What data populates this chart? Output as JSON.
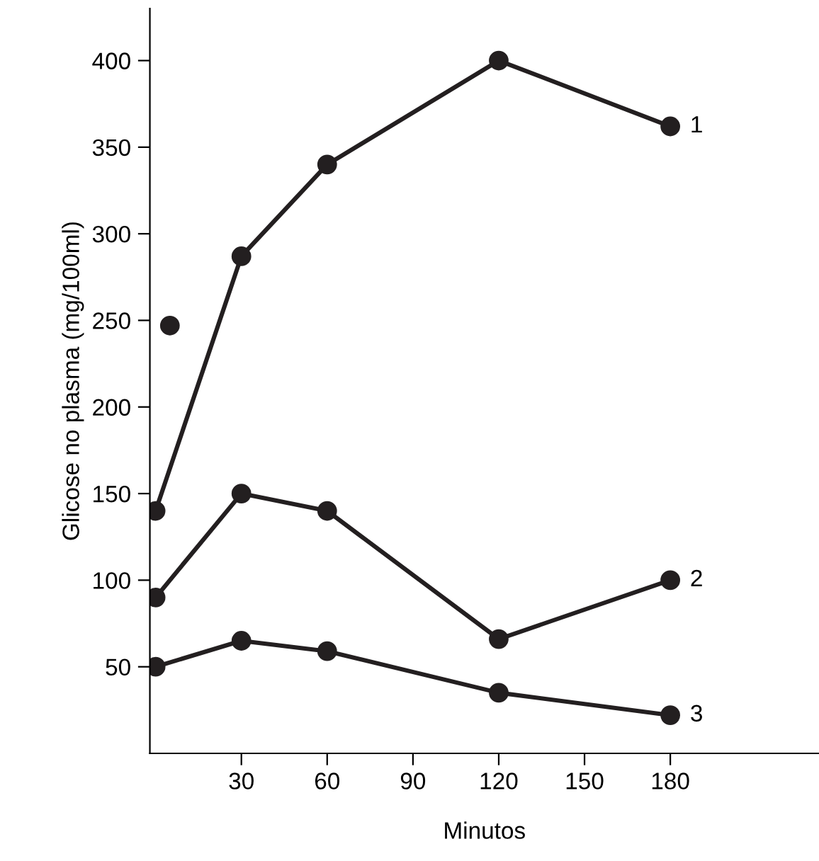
{
  "chart_data": {
    "type": "line",
    "xlabel": "Minutos",
    "ylabel": "Glicose no plasma (mg/100ml)",
    "x": [
      0,
      30,
      60,
      120,
      180
    ],
    "series": [
      {
        "name": "1",
        "color": "#231f20",
        "values": [
          140,
          287,
          340,
          400,
          362
        ]
      },
      {
        "name": "2",
        "color": "#231f20",
        "values": [
          90,
          150,
          140,
          66,
          100
        ]
      },
      {
        "name": "3",
        "color": "#231f20",
        "values": [
          50,
          65,
          59,
          35,
          22
        ]
      },
      {
        "type": "scatter",
        "color": "#231f20",
        "x": [
          5
        ],
        "values": [
          247
        ]
      }
    ],
    "xlim": [
      -2,
      232
    ],
    "ylim": [
      0,
      430
    ],
    "xticks": [
      30,
      60,
      90,
      120,
      150,
      180
    ],
    "yticks": [
      50,
      100,
      150,
      200,
      250,
      300,
      350,
      400
    ],
    "marker": "circle",
    "line_style": "solid",
    "grid": false,
    "legend": false
  }
}
